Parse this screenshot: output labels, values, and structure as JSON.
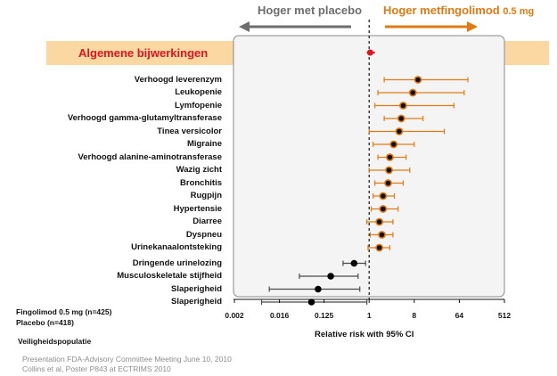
{
  "header": {
    "left_label": "Hoger met placebo",
    "right_label": "Hoger metfingolimod",
    "right_dose": "0.5 mg"
  },
  "banner": {
    "label": "Algemene bijwerkingen"
  },
  "colors": {
    "banner_bg": "#fbd7a2",
    "banner_text": "#e0141e",
    "fingolimod": "#e07a12",
    "placebo": "#4a4a4a",
    "summary": "#e0141e"
  },
  "legend": {
    "line1": "Fingolimod 0.5 mg (n=425)",
    "line2": "Placebo (n=418)",
    "population": "Veiligheidspopulatie"
  },
  "source": {
    "line1": "Presentation FDA-Advisory Committee Meeting June 10, 2010",
    "line2": "Collins et al, Poster P843 at ECTRIMS 2010"
  },
  "chart_data": {
    "type": "forest",
    "xlabel": "Relative risk with 95% CI",
    "xscale": "log2",
    "xlim": [
      0.002,
      512
    ],
    "xticks": [
      "0.002",
      "0.016",
      "0.125",
      "1",
      "8",
      "64",
      "512"
    ],
    "reference_line": 1,
    "summary": {
      "name": "Algemene bijwerkingen",
      "rr": 1.05,
      "ci": [
        0.9,
        1.3
      ]
    },
    "rows": [
      {
        "category": "Verhoogd leverenzym",
        "rr": 9.5,
        "ci": [
          2.0,
          95
        ],
        "favors": "fingolimod"
      },
      {
        "category": "Leukopenie",
        "rr": 7.5,
        "ci": [
          1.5,
          80
        ],
        "favors": "fingolimod"
      },
      {
        "category": "Lymfopenie",
        "rr": 4.8,
        "ci": [
          1.3,
          50
        ],
        "favors": "fingolimod"
      },
      {
        "category": "Verhoogd gamma-glutamyltransferase",
        "rr": 4.4,
        "ci": [
          2.0,
          12
        ],
        "favors": "fingolimod"
      },
      {
        "category": "Tinea versicolor",
        "rr": 4.0,
        "ci": [
          1.0,
          32
        ],
        "favors": "fingolimod"
      },
      {
        "category": "Migraine",
        "rr": 3.1,
        "ci": [
          1.2,
          8
        ],
        "favors": "fingolimod"
      },
      {
        "category": "Verhoogd alanine-aminotransferase",
        "rr": 2.6,
        "ci": [
          1.5,
          5.5
        ],
        "favors": "fingolimod"
      },
      {
        "category": "Wazig zicht",
        "rr": 2.5,
        "ci": [
          1.0,
          6.5
        ],
        "favors": "fingolimod"
      },
      {
        "category": "Bronchitis",
        "rr": 2.4,
        "ci": [
          1.3,
          4.8
        ],
        "favors": "fingolimod"
      },
      {
        "category": "Rugpijn",
        "rr": 1.9,
        "ci": [
          1.2,
          3.2
        ],
        "favors": "fingolimod"
      },
      {
        "category": "Hypertensie",
        "rr": 1.9,
        "ci": [
          1.1,
          3.8
        ],
        "favors": "fingolimod"
      },
      {
        "category": "Diarree",
        "rr": 1.6,
        "ci": [
          0.9,
          3.0
        ],
        "favors": "fingolimod"
      },
      {
        "category": "Dyspneu",
        "rr": 1.8,
        "ci": [
          1.05,
          3.0
        ],
        "favors": "fingolimod"
      },
      {
        "category": "Urinekanaalontsteking",
        "rr": 1.6,
        "ci": [
          0.95,
          2.6
        ],
        "favors": "fingolimod"
      },
      {
        "category": "Dringende urinelozing",
        "rr": 0.5,
        "ci": [
          0.3,
          0.85
        ],
        "favors": "placebo"
      },
      {
        "category": "Musculoskeletale stijfheid",
        "rr": 0.17,
        "ci": [
          0.04,
          0.6
        ],
        "favors": "placebo"
      },
      {
        "category": "Slaperigheid",
        "rr": 0.095,
        "ci": [
          0.01,
          0.65
        ],
        "favors": "placebo"
      },
      {
        "category": "Slaperigheid",
        "rr": 0.07,
        "ci": [
          0.007,
          0.9
        ],
        "favors": "placebo"
      }
    ]
  }
}
